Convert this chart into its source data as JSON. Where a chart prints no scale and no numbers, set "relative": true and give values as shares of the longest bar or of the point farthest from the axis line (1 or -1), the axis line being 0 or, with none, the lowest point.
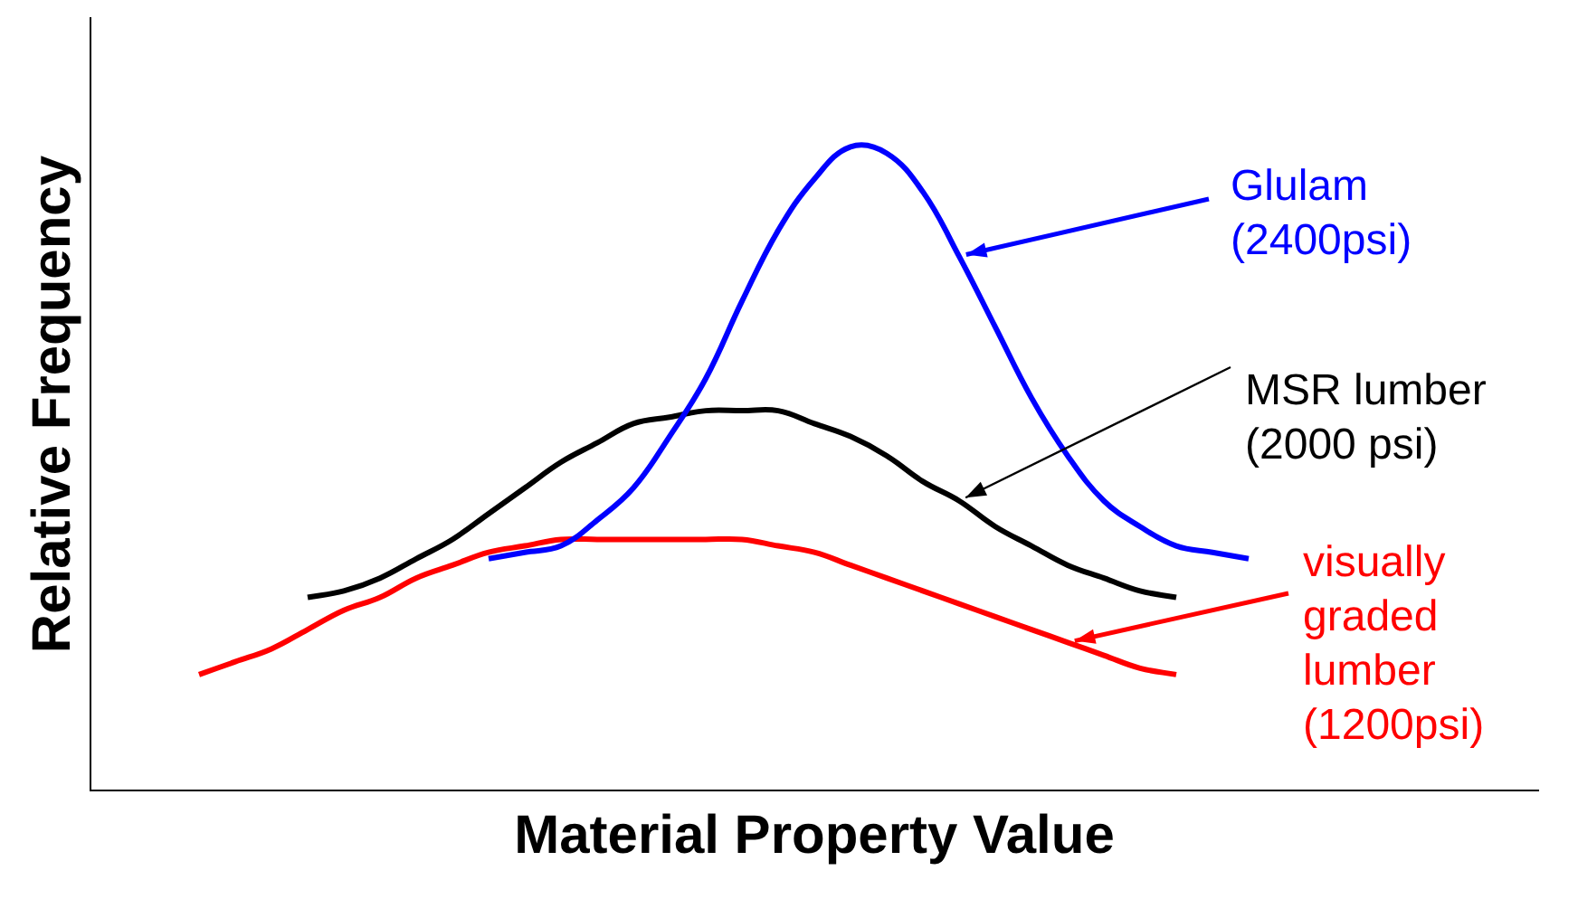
{
  "chart_data": {
    "type": "line",
    "relative": true,
    "xlabel": "Material Property Value",
    "ylabel": "Relative Frequency",
    "marker": "none",
    "line_style": "solid",
    "categories": [
      null,
      null,
      null,
      null,
      null,
      null,
      null,
      null,
      null,
      null,
      null,
      null,
      null,
      null,
      null,
      null,
      null,
      null,
      null,
      null,
      null,
      null,
      null,
      null,
      null,
      null,
      null,
      null,
      null,
      null,
      null,
      null,
      null,
      null,
      null,
      null,
      null,
      null,
      null,
      null,
      null
    ],
    "series": [
      {
        "name": "Glulam (2400psi)",
        "color": "#0000ff",
        "values": [
          null,
          null,
          null,
          null,
          null,
          null,
          null,
          null,
          null,
          null,
          null,
          0.36,
          0.37,
          0.38,
          0.42,
          0.47,
          0.55,
          0.64,
          0.76,
          0.87,
          0.95,
          1.0,
          0.99,
          0.93,
          0.83,
          0.72,
          0.61,
          0.52,
          0.45,
          0.41,
          0.38,
          0.37,
          0.36,
          null,
          null,
          null,
          null,
          null,
          null,
          null,
          null
        ]
      },
      {
        "name": "MSR lumber (2000 psi)",
        "color": "#000000",
        "values": [
          null,
          null,
          null,
          null,
          null,
          null,
          0.3,
          0.31,
          0.33,
          0.36,
          0.39,
          0.43,
          0.47,
          0.51,
          0.54,
          0.57,
          0.58,
          0.59,
          0.59,
          0.59,
          0.57,
          0.55,
          0.52,
          0.48,
          0.45,
          0.41,
          0.38,
          0.35,
          0.33,
          0.31,
          0.3,
          null,
          null,
          null,
          null,
          null,
          null,
          null,
          null,
          null,
          null
        ]
      },
      {
        "name": "visually graded lumber (1200psi)",
        "color": "#ff0000",
        "values": [
          null,
          null,
          null,
          0.18,
          0.2,
          0.22,
          0.25,
          0.28,
          0.3,
          0.33,
          0.35,
          0.37,
          0.38,
          0.39,
          0.39,
          0.39,
          0.39,
          0.39,
          0.39,
          0.38,
          0.37,
          0.35,
          0.33,
          0.31,
          0.29,
          0.27,
          0.25,
          0.23,
          0.21,
          0.19,
          0.18,
          null,
          null,
          null,
          null,
          null,
          null,
          null,
          null,
          null,
          null
        ]
      }
    ]
  }
}
